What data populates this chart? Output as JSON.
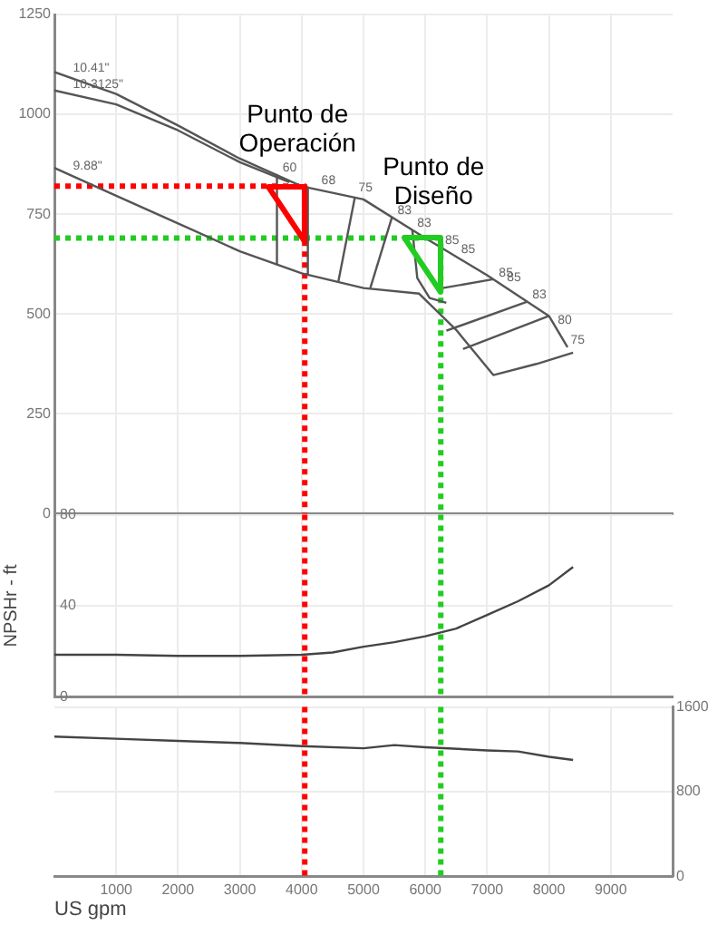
{
  "chart_data": [
    {
      "type": "line",
      "xlim": [
        0,
        10000
      ],
      "xticks": [
        1000,
        2000,
        3000,
        4000,
        5000,
        6000,
        7000,
        8000,
        9000
      ],
      "ylim": [
        0,
        1250
      ],
      "yticks": [
        0,
        250,
        500,
        750,
        1000,
        1250
      ],
      "grid": true,
      "tick_labels": "y",
      "series": [
        {
          "color": "#555555",
          "x": [
            0,
            1000,
            2000,
            3000,
            4000,
            5000,
            6000,
            7000,
            8000,
            8300
          ],
          "values": [
            1106,
            1051,
            972,
            889,
            820,
            787,
            690,
            597,
            495,
            417
          ]
        },
        {
          "color": "#555555",
          "x": [
            0,
            1000,
            2000,
            3000,
            3800
          ],
          "values": [
            1060,
            1025,
            960,
            880,
            830
          ]
        },
        {
          "color": "#555555",
          "x": [
            0,
            1000,
            2000,
            3000,
            4000,
            5000,
            5900,
            6500,
            7100,
            7800,
            8390
          ],
          "values": [
            866,
            796,
            727,
            657,
            602,
            565,
            551,
            460,
            347,
            375,
            403
          ]
        },
        {
          "color": "#555555",
          "x": [
            3600,
            3600
          ],
          "values": [
            848,
            625
          ]
        },
        {
          "color": "#555555",
          "x": [
            4100,
            4100
          ],
          "values": [
            817,
            600
          ]
        },
        {
          "color": "#555555",
          "x": [
            4860,
            4590
          ],
          "values": [
            792,
            579
          ]
        },
        {
          "color": "#555555",
          "x": [
            5460,
            5110
          ],
          "values": [
            742,
            565
          ]
        },
        {
          "color": "#555555",
          "x": [
            5790,
            5870,
            6070,
            6340
          ],
          "values": [
            710,
            590,
            540,
            528
          ]
        },
        {
          "color": "#555555",
          "x": [
            6280,
            7100
          ],
          "values": [
            565,
            587
          ]
        },
        {
          "color": "#555555",
          "x": [
            6340,
            7650
          ],
          "values": [
            458,
            531
          ]
        },
        {
          "color": "#555555",
          "x": [
            6610,
            8000
          ],
          "values": [
            412,
            495
          ]
        },
        {
          "color": "#ff0000",
          "line_style": "dotted",
          "x": [
            0,
            4050,
            4050
          ],
          "values": [
            820,
            820,
            0
          ]
        },
        {
          "color": "#22cc22",
          "line_style": "dotted",
          "x": [
            0,
            6250,
            6250
          ],
          "values": [
            690,
            690,
            0
          ]
        }
      ],
      "annotations": [
        {
          "text": "10.41\"",
          "x": 300,
          "y": 1090
        },
        {
          "text": "10.3125\"",
          "x": 300,
          "y": 1050
        },
        {
          "text": "9.88\"",
          "x": 300,
          "y": 845
        },
        {
          "text": "60",
          "x": 3690,
          "y": 841
        },
        {
          "text": "68",
          "x": 4320,
          "y": 809
        },
        {
          "text": "75",
          "x": 4920,
          "y": 790
        },
        {
          "text": "83",
          "x": 5550,
          "y": 734
        },
        {
          "text": "83",
          "x": 5870,
          "y": 703
        },
        {
          "text": "85",
          "x": 6320,
          "y": 660
        },
        {
          "text": "85",
          "x": 6580,
          "y": 636
        },
        {
          "text": "85",
          "x": 7190,
          "y": 578
        },
        {
          "text": "85",
          "x": 7320,
          "y": 565
        },
        {
          "text": "83",
          "x": 7730,
          "y": 523
        },
        {
          "text": "80",
          "x": 8140,
          "y": 459
        },
        {
          "text": "75",
          "x": 8350,
          "y": 410
        },
        {
          "text": "Punto de Operación",
          "x": 4050,
          "y": 820
        },
        {
          "text": "Punto de Diseño",
          "x": 6250,
          "y": 690
        }
      ]
    },
    {
      "type": "line",
      "xlim": [
        0,
        10000
      ],
      "xticks": [
        1000,
        2000,
        3000,
        4000,
        5000,
        6000,
        7000,
        8000,
        9000
      ],
      "ylim": [
        0,
        80
      ],
      "yticks": [
        0,
        40,
        80
      ],
      "ylabel": "NPSHr - ft",
      "grid": true,
      "tick_labels": "y",
      "series": [
        {
          "color": "#444444",
          "x": [
            0,
            1000,
            2000,
            3000,
            4000,
            4500,
            5000,
            5500,
            6000,
            6500,
            7000,
            7500,
            8000,
            8390
          ],
          "values": [
            18.5,
            18.5,
            18,
            18,
            18.5,
            19.5,
            22,
            24,
            26.6,
            30,
            36,
            42,
            49,
            57
          ]
        }
      ],
      "ref_lines": [
        {
          "axis": "x",
          "value": 4050,
          "color": "#ff0000",
          "line_style": "dotted"
        },
        {
          "axis": "x",
          "value": 6250,
          "color": "#22cc22",
          "line_style": "dotted"
        }
      ]
    },
    {
      "type": "line",
      "xlim": [
        0,
        10000
      ],
      "xticks": [
        1000,
        2000,
        3000,
        4000,
        5000,
        6000,
        7000,
        8000,
        9000
      ],
      "xlabel": "US gpm",
      "y2lim": [
        0,
        1600
      ],
      "y2ticks": [
        0,
        800,
        1600
      ],
      "grid": true,
      "series": [
        {
          "color": "#444444",
          "axis": "y2",
          "x": [
            0,
            1000,
            2000,
            3000,
            4000,
            5000,
            5500,
            6000,
            7000,
            7500,
            8000,
            8390
          ],
          "values": [
            1320,
            1300,
            1280,
            1260,
            1230,
            1210,
            1240,
            1220,
            1190,
            1180,
            1130,
            1100
          ]
        }
      ],
      "ref_lines": [
        {
          "axis": "x",
          "value": 4050,
          "color": "#ff0000",
          "line_style": "dotted"
        },
        {
          "axis": "x",
          "value": 6250,
          "color": "#22cc22",
          "line_style": "dotted"
        }
      ]
    }
  ]
}
